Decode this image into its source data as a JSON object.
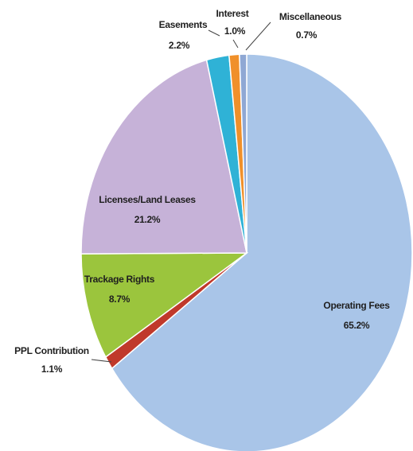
{
  "chart_data": {
    "type": "pie",
    "categories": [
      "Operating Fees",
      "PPL Contribution",
      "Trackage Rights",
      "Licenses/Land Leases",
      "Easements",
      "Interest",
      "Miscellaneous"
    ],
    "values": [
      65.2,
      1.1,
      8.7,
      21.2,
      2.2,
      1.0,
      0.7
    ],
    "value_labels": [
      "65.2%",
      "1.1%",
      "8.7%",
      "21.2%",
      "2.2%",
      "1.0%",
      "0.7%"
    ],
    "colors": [
      "#a9c5e8",
      "#c0392b",
      "#9bc53d",
      "#c6b2d8",
      "#2fb2d6",
      "#f0902a",
      "#8fa8d4"
    ]
  }
}
